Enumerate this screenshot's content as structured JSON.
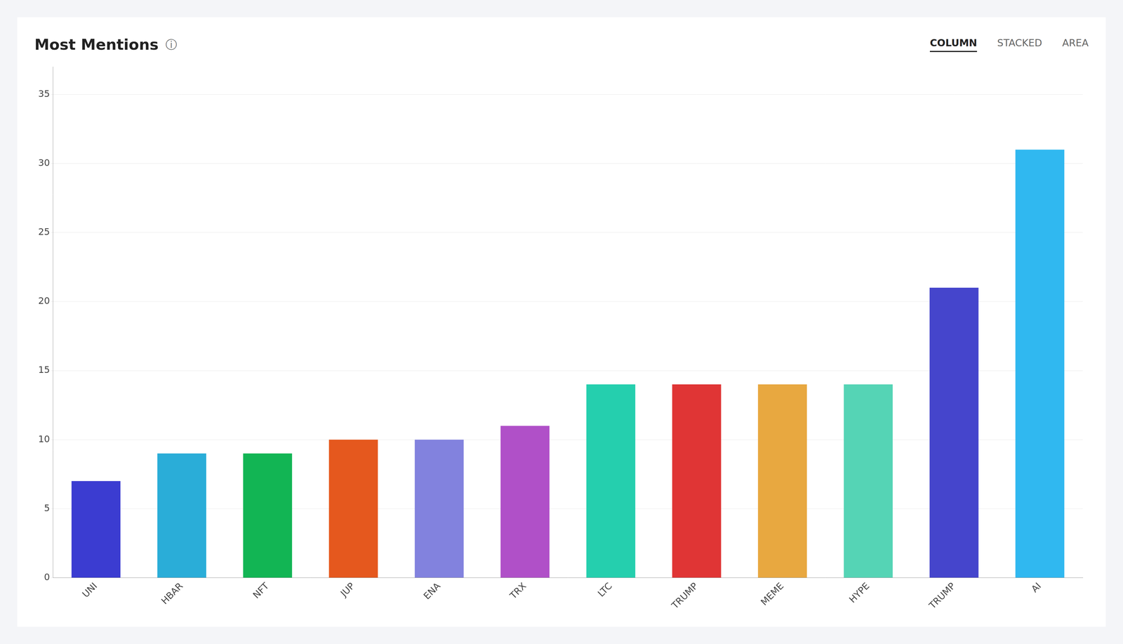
{
  "chart_data": {
    "type": "bar",
    "title": "Most Mentions",
    "annotations": [
      "ⓘ",
      "COLUMN",
      "STACKED",
      "AREA"
    ],
    "categories": [
      "UNI",
      "HBAR",
      "NFT",
      "JUP",
      "ENA",
      "TRX",
      "LTC",
      "TRUMP",
      "MEME",
      "HYPE",
      "TRUMP",
      "AI"
    ],
    "values": [
      7,
      9,
      9,
      10,
      10,
      11,
      14,
      14,
      14,
      14,
      21,
      31
    ],
    "colors": [
      "#3b3cd1",
      "#2aadd8",
      "#12b554",
      "#e5581e",
      "#8282de",
      "#b050c8",
      "#25cfae",
      "#e03535",
      "#e8a840",
      "#55d4b5",
      "#4545cc",
      "#30b8f0"
    ],
    "ylim": [
      0,
      37
    ],
    "yticks": [
      0,
      5,
      10,
      15,
      20,
      25,
      30,
      35
    ],
    "grid": true
  }
}
